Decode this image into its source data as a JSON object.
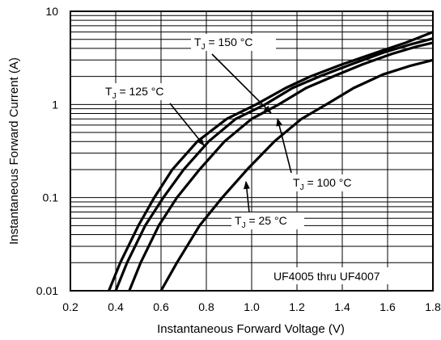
{
  "chart_data": {
    "type": "line",
    "xlabel": "Instantaneous Forward Voltage (V)",
    "ylabel": "Instantaneous Forward Current (A)",
    "xlim": [
      0.2,
      1.8
    ],
    "ylim": [
      0.01,
      10
    ],
    "yscale": "log",
    "grid": true,
    "x_ticks": [
      "0.2",
      "0.4",
      "0.6",
      "0.8",
      "1.0",
      "1.2",
      "1.4",
      "1.6",
      "1.8"
    ],
    "y_ticks": [
      "0.01",
      "0.1",
      "1",
      "10"
    ],
    "annotation": "UF4005 thru UF4007",
    "series": [
      {
        "name": "150 °C",
        "x": [
          0.37,
          0.42,
          0.5,
          0.57,
          0.65,
          0.76,
          0.89,
          1.02,
          1.15,
          1.26,
          1.4,
          1.55,
          1.68,
          1.8
        ],
        "y": [
          0.01,
          0.02,
          0.05,
          0.1,
          0.2,
          0.4,
          0.7,
          1.0,
          1.5,
          2.0,
          2.7,
          3.6,
          4.6,
          6.0
        ]
      },
      {
        "name": "125 °C",
        "x": [
          0.4,
          0.45,
          0.53,
          0.61,
          0.7,
          0.81,
          0.93,
          1.06,
          1.18,
          1.3,
          1.44,
          1.58,
          1.7,
          1.8
        ],
        "y": [
          0.01,
          0.02,
          0.05,
          0.1,
          0.2,
          0.4,
          0.7,
          1.0,
          1.5,
          2.0,
          2.7,
          3.6,
          4.4,
          5.1
        ]
      },
      {
        "name": "100 °C",
        "x": [
          0.46,
          0.51,
          0.59,
          0.67,
          0.77,
          0.88,
          1.0,
          1.12,
          1.24,
          1.36,
          1.49,
          1.62,
          1.73,
          1.8
        ],
        "y": [
          0.01,
          0.02,
          0.05,
          0.1,
          0.2,
          0.4,
          0.7,
          1.0,
          1.5,
          2.0,
          2.7,
          3.5,
          4.2,
          4.6
        ]
      },
      {
        "name": "25 °C",
        "x": [
          0.6,
          0.67,
          0.77,
          0.87,
          0.98,
          1.1,
          1.22,
          1.33,
          1.45,
          1.58,
          1.7,
          1.8
        ],
        "y": [
          0.01,
          0.02,
          0.05,
          0.1,
          0.2,
          0.4,
          0.7,
          1.0,
          1.5,
          2.1,
          2.6,
          3.0
        ]
      }
    ],
    "series_labels": [
      {
        "prefix": "T",
        "sub": "J",
        "suffix": " = 150 °C"
      },
      {
        "prefix": "T",
        "sub": "J",
        "suffix": " = 125 °C"
      },
      {
        "prefix": "T",
        "sub": "J",
        "suffix": " = 100 °C"
      },
      {
        "prefix": "T",
        "sub": "J",
        "suffix": " = 25 °C"
      }
    ]
  }
}
